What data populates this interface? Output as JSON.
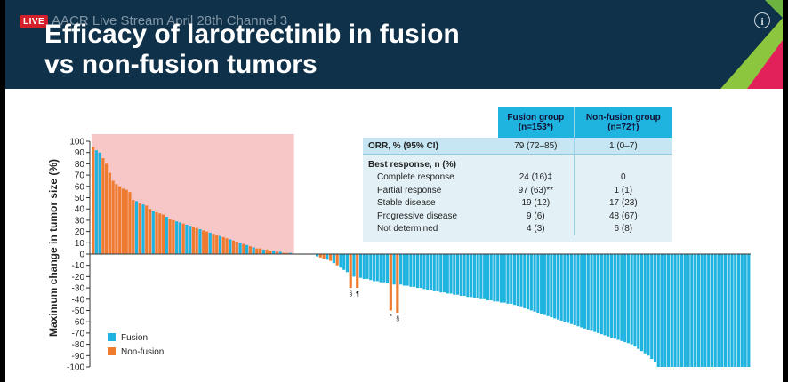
{
  "header": {
    "live_label": "LIVE",
    "stream_label": "AACR Live Stream April 28th Channel 3",
    "title_line1": "Efficacy of larotrectinib in fusion",
    "title_line2": "vs non-fusion tumors",
    "info_icon": "info-icon"
  },
  "colors": {
    "fusion": "#1fb3e0",
    "non_fusion": "#ee7b2e",
    "highlight": "#f7c6c6",
    "header_bg": "#0f3149"
  },
  "table": {
    "col_fusion": "Fusion group",
    "col_fusion_n": "(n=153*)",
    "col_nonfusion": "Non-fusion group",
    "col_nonfusion_n": "(n=72†)",
    "orr_label": "ORR, % (95% CI)",
    "orr_fusion": "79 (72–85)",
    "orr_nonfusion": "1 (0–7)",
    "best_label": "Best response, n (%)",
    "rows": [
      {
        "label": "Complete response",
        "fusion": "24 (16)‡",
        "nonfusion": "0"
      },
      {
        "label": "Partial response",
        "fusion": "97 (63)**",
        "nonfusion": "1 (1)"
      },
      {
        "label": "Stable disease",
        "fusion": "19 (12)",
        "nonfusion": "17 (23)"
      },
      {
        "label": "Progressive disease",
        "fusion": "9 (6)",
        "nonfusion": "48 (67)"
      },
      {
        "label": "Not determined",
        "fusion": "4 (3)",
        "nonfusion": "6 (8)"
      }
    ]
  },
  "chart_data": {
    "type": "bar",
    "ylabel": "Maximum change in tumor size (%)",
    "ylim": [
      -100,
      100
    ],
    "yticks": [
      100,
      90,
      80,
      70,
      60,
      50,
      40,
      30,
      20,
      10,
      0,
      -10,
      -20,
      -30,
      -40,
      -50,
      -60,
      -70,
      -80,
      -90,
      -100
    ],
    "legend": [
      {
        "name": "Fusion",
        "color": "#1fb3e0"
      },
      {
        "name": "Non-fusion",
        "color": "#ee7b2e"
      }
    ],
    "legend_position": "bottom-left",
    "annotations": [
      {
        "text": "§",
        "bar_index": 77
      },
      {
        "text": "¶",
        "bar_index": 79
      },
      {
        "text": "*",
        "bar_index": 89
      },
      {
        "text": "§",
        "bar_index": 91
      }
    ],
    "values": [
      95,
      92,
      90,
      85,
      80,
      72,
      65,
      62,
      60,
      58,
      57,
      55,
      48,
      47,
      45,
      44,
      43,
      40,
      38,
      37,
      36,
      35,
      33,
      31,
      30,
      29,
      28,
      27,
      26,
      25,
      24,
      23,
      22,
      21,
      20,
      19,
      18,
      17,
      16,
      15,
      14,
      13,
      12,
      11,
      10,
      9,
      8,
      7,
      6,
      5,
      5,
      4,
      4,
      3,
      3,
      2,
      2,
      1,
      1,
      1,
      0,
      0,
      0,
      0,
      0,
      0,
      0,
      -2,
      -3,
      -4,
      -5,
      -6,
      -8,
      -10,
      -12,
      -14,
      -16,
      -30,
      -20,
      -30,
      -21,
      -22,
      -22,
      -23,
      -24,
      -24,
      -25,
      -25,
      -26,
      -50,
      -27,
      -52,
      -27,
      -28,
      -28,
      -29,
      -29,
      -30,
      -30,
      -31,
      -32,
      -32,
      -33,
      -33,
      -34,
      -34,
      -35,
      -35,
      -36,
      -36,
      -37,
      -37,
      -38,
      -38,
      -39,
      -39,
      -40,
      -40,
      -41,
      -41,
      -42,
      -42,
      -43,
      -43,
      -44,
      -44,
      -45,
      -46,
      -47,
      -48,
      -49,
      -50,
      -51,
      -52,
      -53,
      -54,
      -55,
      -56,
      -57,
      -58,
      -59,
      -60,
      -61,
      -62,
      -63,
      -64,
      -65,
      -66,
      -67,
      -68,
      -69,
      -70,
      -71,
      -72,
      -73,
      -74,
      -75,
      -76,
      -77,
      -78,
      -79,
      -80,
      -82,
      -84,
      -86,
      -88,
      -90,
      -93,
      -96,
      -100,
      -100,
      -100,
      -100,
      -100,
      -100,
      -100,
      -100,
      -100,
      -100,
      -100,
      -100,
      -100,
      -100,
      -100,
      -100,
      -100,
      -100,
      -100,
      -100,
      -100,
      -100,
      -100,
      -100,
      -100,
      -100,
      -100,
      -100
    ],
    "groups": [
      "n",
      "f",
      "f",
      "n",
      "n",
      "n",
      "n",
      "n",
      "n",
      "n",
      "n",
      "n",
      "n",
      "f",
      "n",
      "f",
      "n",
      "n",
      "f",
      "n",
      "n",
      "n",
      "f",
      "n",
      "n",
      "f",
      "f",
      "n",
      "f",
      "f",
      "n",
      "n",
      "f",
      "n",
      "n",
      "f",
      "n",
      "n",
      "f",
      "n",
      "n",
      "f",
      "n",
      "n",
      "f",
      "n",
      "f",
      "n",
      "f",
      "n",
      "n",
      "f",
      "n",
      "n",
      "f",
      "n",
      "f",
      "n",
      "n",
      "f",
      "f",
      "n",
      "f",
      "f",
      "n",
      "f",
      "f",
      "f",
      "n",
      "n",
      "f",
      "n",
      "f",
      "n",
      "f",
      "f",
      "f",
      "n",
      "f",
      "n",
      "f",
      "f",
      "f",
      "f",
      "f",
      "f",
      "f",
      "f",
      "f",
      "n",
      "f",
      "n",
      "f",
      "f",
      "f",
      "f",
      "f",
      "f",
      "f",
      "f",
      "f",
      "f",
      "f",
      "f",
      "f",
      "f",
      "f",
      "f",
      "f",
      "f",
      "f",
      "f",
      "f",
      "f",
      "f",
      "f",
      "f",
      "f",
      "f",
      "f",
      "f",
      "f",
      "f",
      "f",
      "f",
      "f",
      "f",
      "f",
      "f",
      "f",
      "f",
      "f",
      "f",
      "f",
      "f",
      "f",
      "f",
      "f",
      "f",
      "f",
      "f",
      "f",
      "f",
      "f",
      "f",
      "f",
      "f",
      "f",
      "f",
      "f",
      "f",
      "f",
      "f",
      "f",
      "f",
      "f",
      "f",
      "f",
      "f",
      "f",
      "f",
      "f",
      "f",
      "f",
      "f",
      "f",
      "f",
      "f",
      "f",
      "f",
      "f",
      "f",
      "f",
      "f",
      "f",
      "f",
      "f",
      "f",
      "f",
      "f",
      "f",
      "f",
      "f",
      "f",
      "f",
      "f",
      "f",
      "f",
      "f",
      "f",
      "f",
      "f",
      "f",
      "f",
      "f",
      "f",
      "f",
      "f",
      "f",
      "f",
      "f",
      "f",
      "f",
      "f"
    ]
  }
}
